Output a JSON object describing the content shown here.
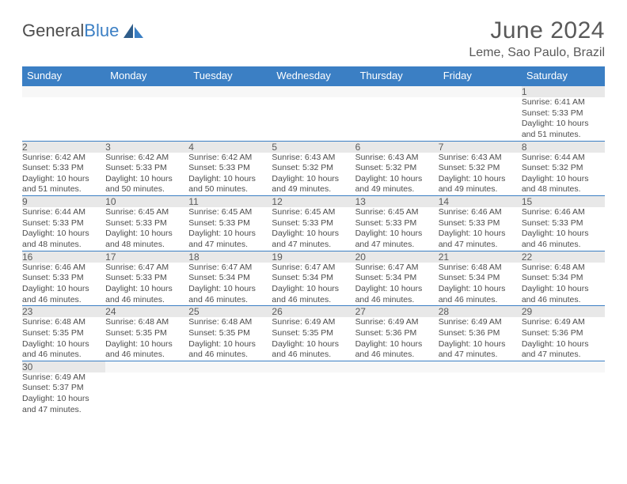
{
  "logo": {
    "part1": "General",
    "part2": "Blue"
  },
  "title": "June 2024",
  "location": "Leme, Sao Paulo, Brazil",
  "colors": {
    "header_bg": "#3b7fc4",
    "header_text": "#ffffff",
    "daynum_bg": "#e8e8e8",
    "daynum_text": "#5a5a5a",
    "body_text": "#4d4d4d",
    "rule": "#3b7fc4",
    "logo_gray": "#4d4d4d",
    "logo_blue": "#3b7fc4"
  },
  "weekdays": [
    "Sunday",
    "Monday",
    "Tuesday",
    "Wednesday",
    "Thursday",
    "Friday",
    "Saturday"
  ],
  "weeks": [
    [
      null,
      null,
      null,
      null,
      null,
      null,
      {
        "n": "1",
        "sr": "6:41 AM",
        "ss": "5:33 PM",
        "dh": "10",
        "dm": "51"
      }
    ],
    [
      {
        "n": "2",
        "sr": "6:42 AM",
        "ss": "5:33 PM",
        "dh": "10",
        "dm": "51"
      },
      {
        "n": "3",
        "sr": "6:42 AM",
        "ss": "5:33 PM",
        "dh": "10",
        "dm": "50"
      },
      {
        "n": "4",
        "sr": "6:42 AM",
        "ss": "5:33 PM",
        "dh": "10",
        "dm": "50"
      },
      {
        "n": "5",
        "sr": "6:43 AM",
        "ss": "5:32 PM",
        "dh": "10",
        "dm": "49"
      },
      {
        "n": "6",
        "sr": "6:43 AM",
        "ss": "5:32 PM",
        "dh": "10",
        "dm": "49"
      },
      {
        "n": "7",
        "sr": "6:43 AM",
        "ss": "5:32 PM",
        "dh": "10",
        "dm": "49"
      },
      {
        "n": "8",
        "sr": "6:44 AM",
        "ss": "5:32 PM",
        "dh": "10",
        "dm": "48"
      }
    ],
    [
      {
        "n": "9",
        "sr": "6:44 AM",
        "ss": "5:33 PM",
        "dh": "10",
        "dm": "48"
      },
      {
        "n": "10",
        "sr": "6:45 AM",
        "ss": "5:33 PM",
        "dh": "10",
        "dm": "48"
      },
      {
        "n": "11",
        "sr": "6:45 AM",
        "ss": "5:33 PM",
        "dh": "10",
        "dm": "47"
      },
      {
        "n": "12",
        "sr": "6:45 AM",
        "ss": "5:33 PM",
        "dh": "10",
        "dm": "47"
      },
      {
        "n": "13",
        "sr": "6:45 AM",
        "ss": "5:33 PM",
        "dh": "10",
        "dm": "47"
      },
      {
        "n": "14",
        "sr": "6:46 AM",
        "ss": "5:33 PM",
        "dh": "10",
        "dm": "47"
      },
      {
        "n": "15",
        "sr": "6:46 AM",
        "ss": "5:33 PM",
        "dh": "10",
        "dm": "46"
      }
    ],
    [
      {
        "n": "16",
        "sr": "6:46 AM",
        "ss": "5:33 PM",
        "dh": "10",
        "dm": "46"
      },
      {
        "n": "17",
        "sr": "6:47 AM",
        "ss": "5:33 PM",
        "dh": "10",
        "dm": "46"
      },
      {
        "n": "18",
        "sr": "6:47 AM",
        "ss": "5:34 PM",
        "dh": "10",
        "dm": "46"
      },
      {
        "n": "19",
        "sr": "6:47 AM",
        "ss": "5:34 PM",
        "dh": "10",
        "dm": "46"
      },
      {
        "n": "20",
        "sr": "6:47 AM",
        "ss": "5:34 PM",
        "dh": "10",
        "dm": "46"
      },
      {
        "n": "21",
        "sr": "6:48 AM",
        "ss": "5:34 PM",
        "dh": "10",
        "dm": "46"
      },
      {
        "n": "22",
        "sr": "6:48 AM",
        "ss": "5:34 PM",
        "dh": "10",
        "dm": "46"
      }
    ],
    [
      {
        "n": "23",
        "sr": "6:48 AM",
        "ss": "5:35 PM",
        "dh": "10",
        "dm": "46"
      },
      {
        "n": "24",
        "sr": "6:48 AM",
        "ss": "5:35 PM",
        "dh": "10",
        "dm": "46"
      },
      {
        "n": "25",
        "sr": "6:48 AM",
        "ss": "5:35 PM",
        "dh": "10",
        "dm": "46"
      },
      {
        "n": "26",
        "sr": "6:49 AM",
        "ss": "5:35 PM",
        "dh": "10",
        "dm": "46"
      },
      {
        "n": "27",
        "sr": "6:49 AM",
        "ss": "5:36 PM",
        "dh": "10",
        "dm": "46"
      },
      {
        "n": "28",
        "sr": "6:49 AM",
        "ss": "5:36 PM",
        "dh": "10",
        "dm": "47"
      },
      {
        "n": "29",
        "sr": "6:49 AM",
        "ss": "5:36 PM",
        "dh": "10",
        "dm": "47"
      }
    ],
    [
      {
        "n": "30",
        "sr": "6:49 AM",
        "ss": "5:37 PM",
        "dh": "10",
        "dm": "47"
      },
      null,
      null,
      null,
      null,
      null,
      null
    ]
  ],
  "labels": {
    "sunrise": "Sunrise:",
    "sunset": "Sunset:",
    "daylight": "Daylight:",
    "hours": "hours",
    "and": "and",
    "minutes": "minutes."
  }
}
